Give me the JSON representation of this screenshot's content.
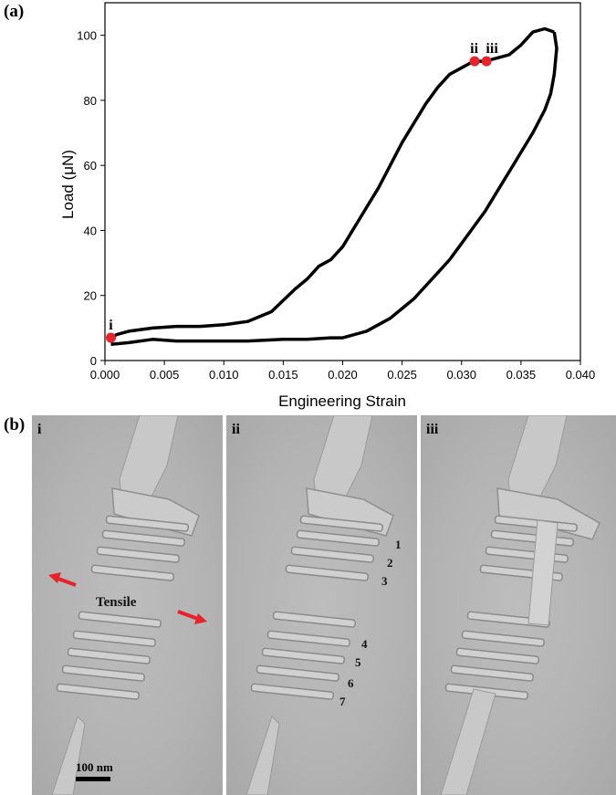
{
  "panel_a_label": "(a)",
  "panel_b_label": "(b)",
  "chart_data": {
    "type": "line",
    "xlabel": "Engineering Strain",
    "ylabel": "Load (μN)",
    "xlim": [
      0.0,
      0.04
    ],
    "ylim": [
      0,
      110
    ],
    "x_ticks": [
      "0.000",
      "0.005",
      "0.010",
      "0.015",
      "0.020",
      "0.025",
      "0.030",
      "0.035",
      "0.040"
    ],
    "y_ticks": [
      "0",
      "20",
      "40",
      "60",
      "80",
      "100"
    ],
    "grid": false,
    "loading": {
      "x": [
        0.0005,
        0.001,
        0.002,
        0.004,
        0.006,
        0.008,
        0.01,
        0.012,
        0.014,
        0.016,
        0.017,
        0.018,
        0.019,
        0.02,
        0.021,
        0.022,
        0.023,
        0.024,
        0.025,
        0.026,
        0.027,
        0.028,
        0.029,
        0.03,
        0.031,
        0.032,
        0.033,
        0.034,
        0.035,
        0.036,
        0.037,
        0.0378
      ],
      "y": [
        7,
        8,
        9,
        10,
        10.5,
        10.5,
        11,
        12,
        15,
        22,
        25,
        29,
        31,
        35,
        41,
        47,
        53,
        60,
        67,
        73,
        79,
        84,
        88,
        90,
        92,
        92,
        93,
        94,
        97,
        101,
        102,
        101
      ]
    },
    "unloading": {
      "x": [
        0.0378,
        0.038,
        0.0378,
        0.0375,
        0.037,
        0.036,
        0.035,
        0.034,
        0.033,
        0.032,
        0.031,
        0.03,
        0.029,
        0.028,
        0.027,
        0.026,
        0.025,
        0.024,
        0.023,
        0.022,
        0.021,
        0.02,
        0.019,
        0.017,
        0.015,
        0.012,
        0.009,
        0.006,
        0.004,
        0.002,
        0.0005
      ],
      "y": [
        101,
        96,
        88,
        82,
        77,
        70,
        64,
        58,
        52,
        46,
        41,
        36,
        31,
        27,
        23,
        19,
        16,
        13,
        11,
        9,
        8,
        7,
        7,
        6.5,
        6.5,
        6,
        6,
        6,
        6.5,
        5.5,
        5
      ]
    },
    "markers": [
      {
        "label": "i",
        "x": 0.0005,
        "y": 7
      },
      {
        "label": "ii",
        "x": 0.0311,
        "y": 92
      },
      {
        "label": "iii",
        "x": 0.0321,
        "y": 92
      }
    ],
    "marker_color": "#e8232a",
    "line_color": "#000000"
  },
  "images": {
    "labels": [
      "i",
      "ii",
      "iii"
    ],
    "tensile_label": "Tensile",
    "numbers": [
      "1",
      "2",
      "3",
      "4",
      "5",
      "6",
      "7"
    ],
    "scale_bar": "100 nm",
    "arrow_color": "#e8232a"
  }
}
